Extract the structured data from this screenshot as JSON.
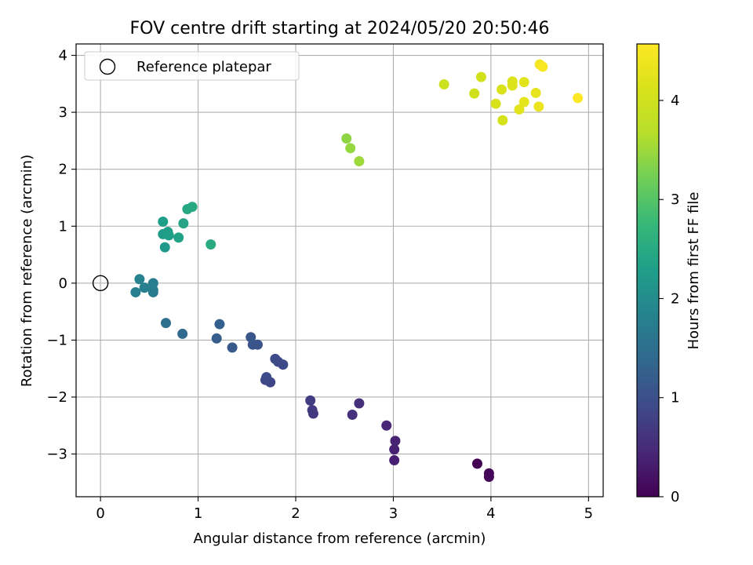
{
  "chart_data": {
    "type": "scatter",
    "title": "FOV centre drift starting at 2024/05/20 20:50:46",
    "xlabel": "Angular distance from reference (arcmin)",
    "ylabel": "Rotation from reference (arcmin)",
    "xlim": [
      -0.25,
      5.15
    ],
    "ylim": [
      -3.75,
      4.2
    ],
    "xticks": [
      0,
      1,
      2,
      3,
      4,
      5
    ],
    "yticks": [
      -3,
      -2,
      -1,
      0,
      1,
      2,
      3,
      4
    ],
    "grid": true,
    "legend": {
      "placement": "upper-left",
      "entries": [
        "Reference platepar"
      ]
    },
    "reference_point": {
      "x": 0,
      "y": 0,
      "label": "Reference platepar"
    },
    "colorbar": {
      "label": "Hours from first FF file",
      "colormap": "viridis",
      "range": [
        0,
        4.57
      ],
      "ticks": [
        0,
        1,
        2,
        3,
        4
      ]
    },
    "points": [
      {
        "x": 3.86,
        "y": -3.17,
        "c": 0.0
      },
      {
        "x": 3.98,
        "y": -3.34,
        "c": 0.05
      },
      {
        "x": 3.98,
        "y": -3.4,
        "c": 0.08
      },
      {
        "x": 3.01,
        "y": -3.11,
        "c": 0.35
      },
      {
        "x": 3.01,
        "y": -2.92,
        "c": 0.38
      },
      {
        "x": 3.02,
        "y": -2.77,
        "c": 0.4
      },
      {
        "x": 2.93,
        "y": -2.5,
        "c": 0.45
      },
      {
        "x": 2.65,
        "y": -2.11,
        "c": 0.55
      },
      {
        "x": 2.58,
        "y": -2.31,
        "c": 0.58
      },
      {
        "x": 2.18,
        "y": -2.29,
        "c": 0.65
      },
      {
        "x": 2.17,
        "y": -2.23,
        "c": 0.68
      },
      {
        "x": 2.15,
        "y": -2.06,
        "c": 0.72
      },
      {
        "x": 1.87,
        "y": -1.43,
        "c": 0.9
      },
      {
        "x": 1.82,
        "y": -1.38,
        "c": 0.92
      },
      {
        "x": 1.79,
        "y": -1.33,
        "c": 0.95
      },
      {
        "x": 1.74,
        "y": -1.74,
        "c": 0.85
      },
      {
        "x": 1.69,
        "y": -1.7,
        "c": 0.88
      },
      {
        "x": 1.7,
        "y": -1.65,
        "c": 0.9
      },
      {
        "x": 1.61,
        "y": -1.08,
        "c": 1.05
      },
      {
        "x": 1.56,
        "y": -1.08,
        "c": 1.08
      },
      {
        "x": 1.54,
        "y": -0.95,
        "c": 1.1
      },
      {
        "x": 1.35,
        "y": -1.13,
        "c": 1.15
      },
      {
        "x": 1.22,
        "y": -0.72,
        "c": 1.25
      },
      {
        "x": 1.19,
        "y": -0.97,
        "c": 1.2
      },
      {
        "x": 0.84,
        "y": -0.89,
        "c": 1.4
      },
      {
        "x": 0.67,
        "y": -0.7,
        "c": 1.5
      },
      {
        "x": 0.54,
        "y": -0.16,
        "c": 1.7
      },
      {
        "x": 0.54,
        "y": -0.12,
        "c": 1.72
      },
      {
        "x": 0.54,
        "y": 0.0,
        "c": 1.75
      },
      {
        "x": 0.45,
        "y": -0.08,
        "c": 1.8
      },
      {
        "x": 0.4,
        "y": 0.07,
        "c": 1.85
      },
      {
        "x": 0.36,
        "y": -0.16,
        "c": 1.78
      },
      {
        "x": 0.66,
        "y": 0.63,
        "c": 2.2
      },
      {
        "x": 0.64,
        "y": 0.86,
        "c": 2.25
      },
      {
        "x": 0.69,
        "y": 0.9,
        "c": 2.28
      },
      {
        "x": 0.7,
        "y": 0.84,
        "c": 2.3
      },
      {
        "x": 0.8,
        "y": 0.8,
        "c": 2.35
      },
      {
        "x": 0.64,
        "y": 1.08,
        "c": 2.3
      },
      {
        "x": 0.85,
        "y": 1.05,
        "c": 2.4
      },
      {
        "x": 0.89,
        "y": 1.3,
        "c": 2.45
      },
      {
        "x": 0.94,
        "y": 1.34,
        "c": 2.48
      },
      {
        "x": 1.13,
        "y": 0.68,
        "c": 2.5
      },
      {
        "x": 2.52,
        "y": 2.54,
        "c": 3.4
      },
      {
        "x": 2.56,
        "y": 2.37,
        "c": 3.45
      },
      {
        "x": 2.65,
        "y": 2.14,
        "c": 3.5
      },
      {
        "x": 3.52,
        "y": 3.49,
        "c": 3.95
      },
      {
        "x": 3.83,
        "y": 3.33,
        "c": 4.0
      },
      {
        "x": 3.9,
        "y": 3.62,
        "c": 4.05
      },
      {
        "x": 4.05,
        "y": 3.15,
        "c": 4.1
      },
      {
        "x": 4.11,
        "y": 3.4,
        "c": 4.12
      },
      {
        "x": 4.12,
        "y": 2.86,
        "c": 4.08
      },
      {
        "x": 4.22,
        "y": 3.54,
        "c": 4.15
      },
      {
        "x": 4.22,
        "y": 3.47,
        "c": 4.18
      },
      {
        "x": 4.29,
        "y": 3.05,
        "c": 4.25
      },
      {
        "x": 4.34,
        "y": 3.53,
        "c": 4.22
      },
      {
        "x": 4.34,
        "y": 3.18,
        "c": 4.28
      },
      {
        "x": 4.46,
        "y": 3.34,
        "c": 4.3
      },
      {
        "x": 4.49,
        "y": 3.1,
        "c": 4.35
      },
      {
        "x": 4.5,
        "y": 3.84,
        "c": 4.45
      },
      {
        "x": 4.53,
        "y": 3.8,
        "c": 4.5
      },
      {
        "x": 4.89,
        "y": 3.25,
        "c": 4.55
      }
    ]
  }
}
